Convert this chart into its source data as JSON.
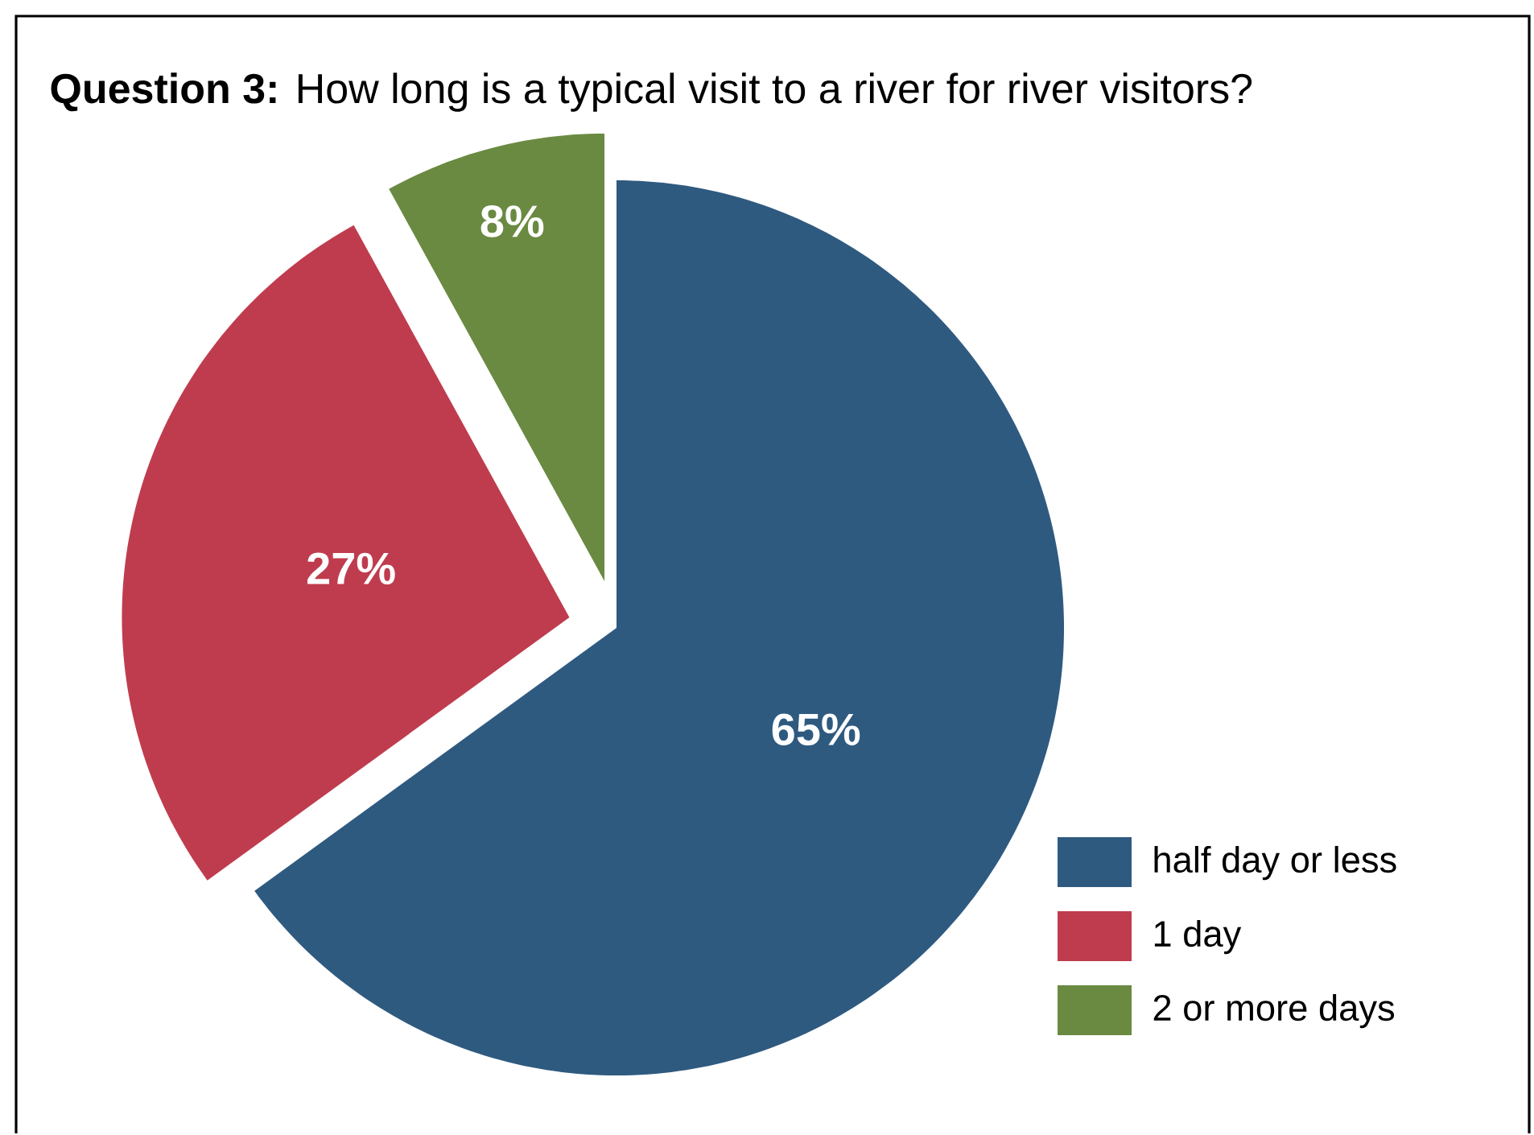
{
  "chart_data": {
    "type": "pie",
    "title": "**Question 3:** How long is a typical visit to a river for river visitors?",
    "categories": [
      "half day or less",
      "1 day",
      "2 or more days"
    ],
    "values": [
      65,
      27,
      8
    ],
    "value_labels": [
      "65%",
      "27%",
      "8%"
    ],
    "colors": [
      "#2f5a80",
      "#bf3c4e",
      "#6a8a42"
    ],
    "legend": "bottom right"
  }
}
